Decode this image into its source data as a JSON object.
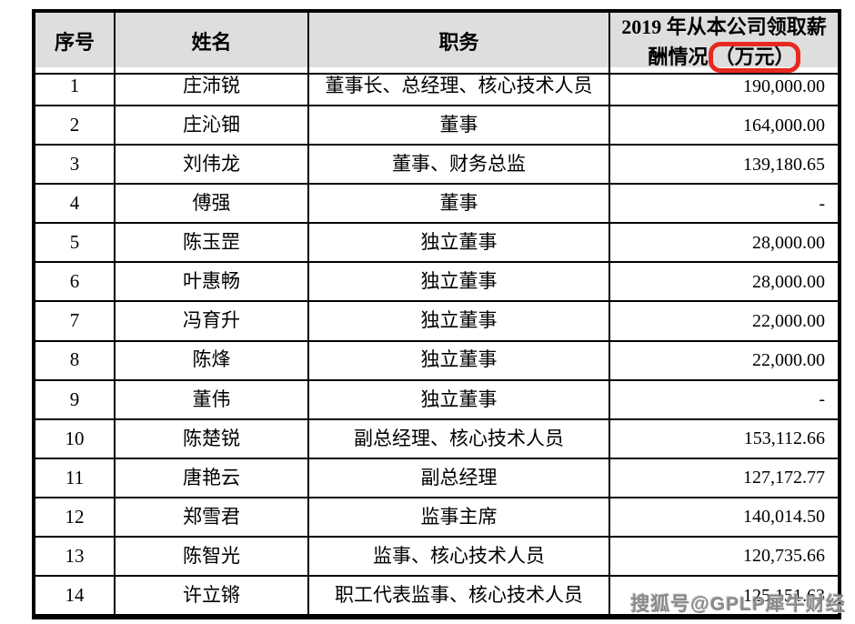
{
  "colors": {
    "header_bg": "#dedede",
    "border": "#000000",
    "red_box": "#e8291f",
    "watermark": "#8a8a8a"
  },
  "table": {
    "headers": {
      "no": "序号",
      "name": "姓名",
      "position": "职务",
      "pay_line1": "2019 年从本公司领取薪",
      "pay_line2_prefix": "酬情况",
      "pay_line2_boxed": "（万元）"
    },
    "rows": [
      {
        "no": "1",
        "name": "庄沛锐",
        "position": "董事长、总经理、核心技术人员",
        "pay": "190,000.00"
      },
      {
        "no": "2",
        "name": "庄沁钿",
        "position": "董事",
        "pay": "164,000.00"
      },
      {
        "no": "3",
        "name": "刘伟龙",
        "position": "董事、财务总监",
        "pay": "139,180.65"
      },
      {
        "no": "4",
        "name": "傅强",
        "position": "董事",
        "pay": "-"
      },
      {
        "no": "5",
        "name": "陈玉罡",
        "position": "独立董事",
        "pay": "28,000.00"
      },
      {
        "no": "6",
        "name": "叶惠畅",
        "position": "独立董事",
        "pay": "28,000.00"
      },
      {
        "no": "7",
        "name": "冯育升",
        "position": "独立董事",
        "pay": "22,000.00"
      },
      {
        "no": "8",
        "name": "陈烽",
        "position": "独立董事",
        "pay": "22,000.00"
      },
      {
        "no": "9",
        "name": "董伟",
        "position": "独立董事",
        "pay": "-"
      },
      {
        "no": "10",
        "name": "陈楚锐",
        "position": "副总经理、核心技术人员",
        "pay": "153,112.66"
      },
      {
        "no": "11",
        "name": "唐艳云",
        "position": "副总经理",
        "pay": "127,172.77"
      },
      {
        "no": "12",
        "name": "郑雪君",
        "position": "监事主席",
        "pay": "140,014.50"
      },
      {
        "no": "13",
        "name": "陈智光",
        "position": "监事、核心技术人员",
        "pay": "120,735.66"
      },
      {
        "no": "14",
        "name": "许立锵",
        "position": "职工代表监事、核心技术人员",
        "pay": "125,151.63"
      }
    ]
  },
  "watermark": {
    "text": "搜狐号@GPLP犀牛财经"
  }
}
